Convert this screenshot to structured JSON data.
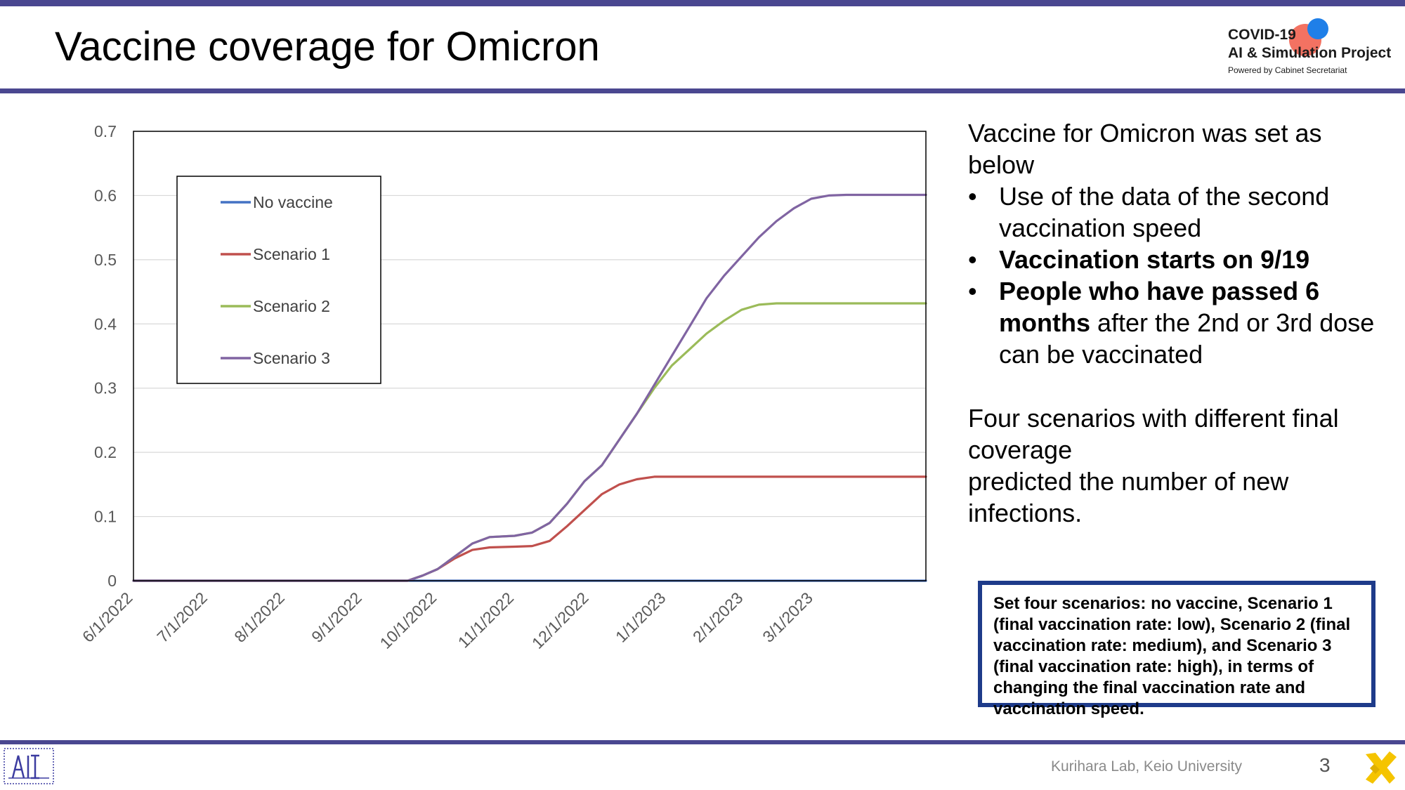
{
  "slide": {
    "title": "Vaccine coverage for Omicron",
    "logo": {
      "line1": "COVID-19",
      "line2": "AI & Simulation Project",
      "line3": "Powered by Cabinet Secretariat"
    },
    "footer": "Kurihara Lab, Keio University",
    "page_number": "3"
  },
  "right_text": {
    "intro_line1": "Vaccine for Omicron was set as",
    "intro_line2": "below",
    "bullet1_line1": "Use of the data of the second",
    "bullet1_line2": "vaccination speed",
    "bullet2": "Vaccination starts on 9/19",
    "bullet3_bold_a": "People who have passed 6",
    "bullet3_bold_b": "months",
    "bullet3_rest_b": " after the 2nd or 3rd dose",
    "bullet3_line3": "can be vaccinated",
    "para_line1": "Four scenarios with different final",
    "para_line2": "coverage",
    "para_line3": "predicted the number of new",
    "para_line4": "infections."
  },
  "note_box": {
    "text": "Set four scenarios: no vaccine, Scenario 1 (final vaccination rate: low), Scenario 2 (final vaccination rate: medium), and Scenario 3 (final vaccination rate: high), in terms of changing the final vaccination rate and vaccination speed."
  },
  "chart_data": {
    "type": "line",
    "title": "",
    "xlabel": "",
    "ylabel": "",
    "x_range": [
      "2022-06-01",
      "2023-04-15"
    ],
    "ylim": [
      0,
      0.7
    ],
    "y_ticks": [
      0,
      0.1,
      0.2,
      0.3,
      0.4,
      0.5,
      0.6,
      0.7
    ],
    "y_tick_labels": [
      "0",
      "0.1",
      "0.2",
      "0.3",
      "0.4",
      "0.5",
      "0.6",
      "0.7"
    ],
    "x_ticks": [
      "2022-06-01",
      "2022-07-01",
      "2022-08-01",
      "2022-09-01",
      "2022-10-01",
      "2022-11-01",
      "2022-12-01",
      "2023-01-01",
      "2023-02-01",
      "2023-03-01"
    ],
    "x_tick_labels": [
      "6/1/2022",
      "7/1/2022",
      "8/1/2022",
      "9/1/2022",
      "10/1/2022",
      "11/1/2022",
      "12/1/2022",
      "1/1/2023",
      "2/1/2023",
      "3/1/2023"
    ],
    "grid": true,
    "legend": "top-left",
    "series": [
      {
        "name": "No vaccine",
        "color": "#4472c4",
        "points": [
          [
            "2022-06-01",
            0
          ],
          [
            "2023-04-15",
            0
          ]
        ]
      },
      {
        "name": "Scenario 1",
        "color": "#c0504d",
        "points": [
          [
            "2022-06-01",
            0
          ],
          [
            "2022-09-19",
            0
          ],
          [
            "2022-09-25",
            0.008
          ],
          [
            "2022-10-01",
            0.018
          ],
          [
            "2022-10-08",
            0.035
          ],
          [
            "2022-10-15",
            0.048
          ],
          [
            "2022-10-22",
            0.052
          ],
          [
            "2022-11-01",
            0.053
          ],
          [
            "2022-11-08",
            0.054
          ],
          [
            "2022-11-15",
            0.062
          ],
          [
            "2022-11-22",
            0.085
          ],
          [
            "2022-11-29",
            0.11
          ],
          [
            "2022-12-06",
            0.135
          ],
          [
            "2022-12-13",
            0.15
          ],
          [
            "2022-12-20",
            0.158
          ],
          [
            "2022-12-27",
            0.162
          ],
          [
            "2023-04-15",
            0.162
          ]
        ]
      },
      {
        "name": "Scenario 2",
        "color": "#9bbb59",
        "points": [
          [
            "2022-06-01",
            0
          ],
          [
            "2022-09-19",
            0
          ],
          [
            "2022-09-25",
            0.008
          ],
          [
            "2022-10-01",
            0.018
          ],
          [
            "2022-10-08",
            0.038
          ],
          [
            "2022-10-15",
            0.058
          ],
          [
            "2022-10-22",
            0.068
          ],
          [
            "2022-11-01",
            0.07
          ],
          [
            "2022-11-08",
            0.075
          ],
          [
            "2022-11-15",
            0.09
          ],
          [
            "2022-11-22",
            0.12
          ],
          [
            "2022-11-29",
            0.155
          ],
          [
            "2022-12-06",
            0.18
          ],
          [
            "2022-12-13",
            0.22
          ],
          [
            "2022-12-20",
            0.26
          ],
          [
            "2022-12-27",
            0.3
          ],
          [
            "2023-01-03",
            0.335
          ],
          [
            "2023-01-10",
            0.36
          ],
          [
            "2023-01-17",
            0.385
          ],
          [
            "2023-01-24",
            0.405
          ],
          [
            "2023-01-31",
            0.422
          ],
          [
            "2023-02-07",
            0.43
          ],
          [
            "2023-02-14",
            0.432
          ],
          [
            "2023-04-15",
            0.432
          ]
        ]
      },
      {
        "name": "Scenario 3",
        "color": "#8064a2",
        "points": [
          [
            "2022-06-01",
            0
          ],
          [
            "2022-09-19",
            0
          ],
          [
            "2022-09-25",
            0.008
          ],
          [
            "2022-10-01",
            0.018
          ],
          [
            "2022-10-08",
            0.038
          ],
          [
            "2022-10-15",
            0.058
          ],
          [
            "2022-10-22",
            0.068
          ],
          [
            "2022-11-01",
            0.07
          ],
          [
            "2022-11-08",
            0.075
          ],
          [
            "2022-11-15",
            0.09
          ],
          [
            "2022-11-22",
            0.12
          ],
          [
            "2022-11-29",
            0.155
          ],
          [
            "2022-12-06",
            0.18
          ],
          [
            "2022-12-13",
            0.22
          ],
          [
            "2022-12-20",
            0.26
          ],
          [
            "2022-12-27",
            0.305
          ],
          [
            "2023-01-03",
            0.35
          ],
          [
            "2023-01-10",
            0.395
          ],
          [
            "2023-01-17",
            0.44
          ],
          [
            "2023-01-24",
            0.475
          ],
          [
            "2023-01-31",
            0.505
          ],
          [
            "2023-02-07",
            0.535
          ],
          [
            "2023-02-14",
            0.56
          ],
          [
            "2023-02-21",
            0.58
          ],
          [
            "2023-02-28",
            0.595
          ],
          [
            "2023-03-07",
            0.6
          ],
          [
            "2023-03-14",
            0.601
          ],
          [
            "2023-04-15",
            0.601
          ]
        ]
      }
    ]
  }
}
